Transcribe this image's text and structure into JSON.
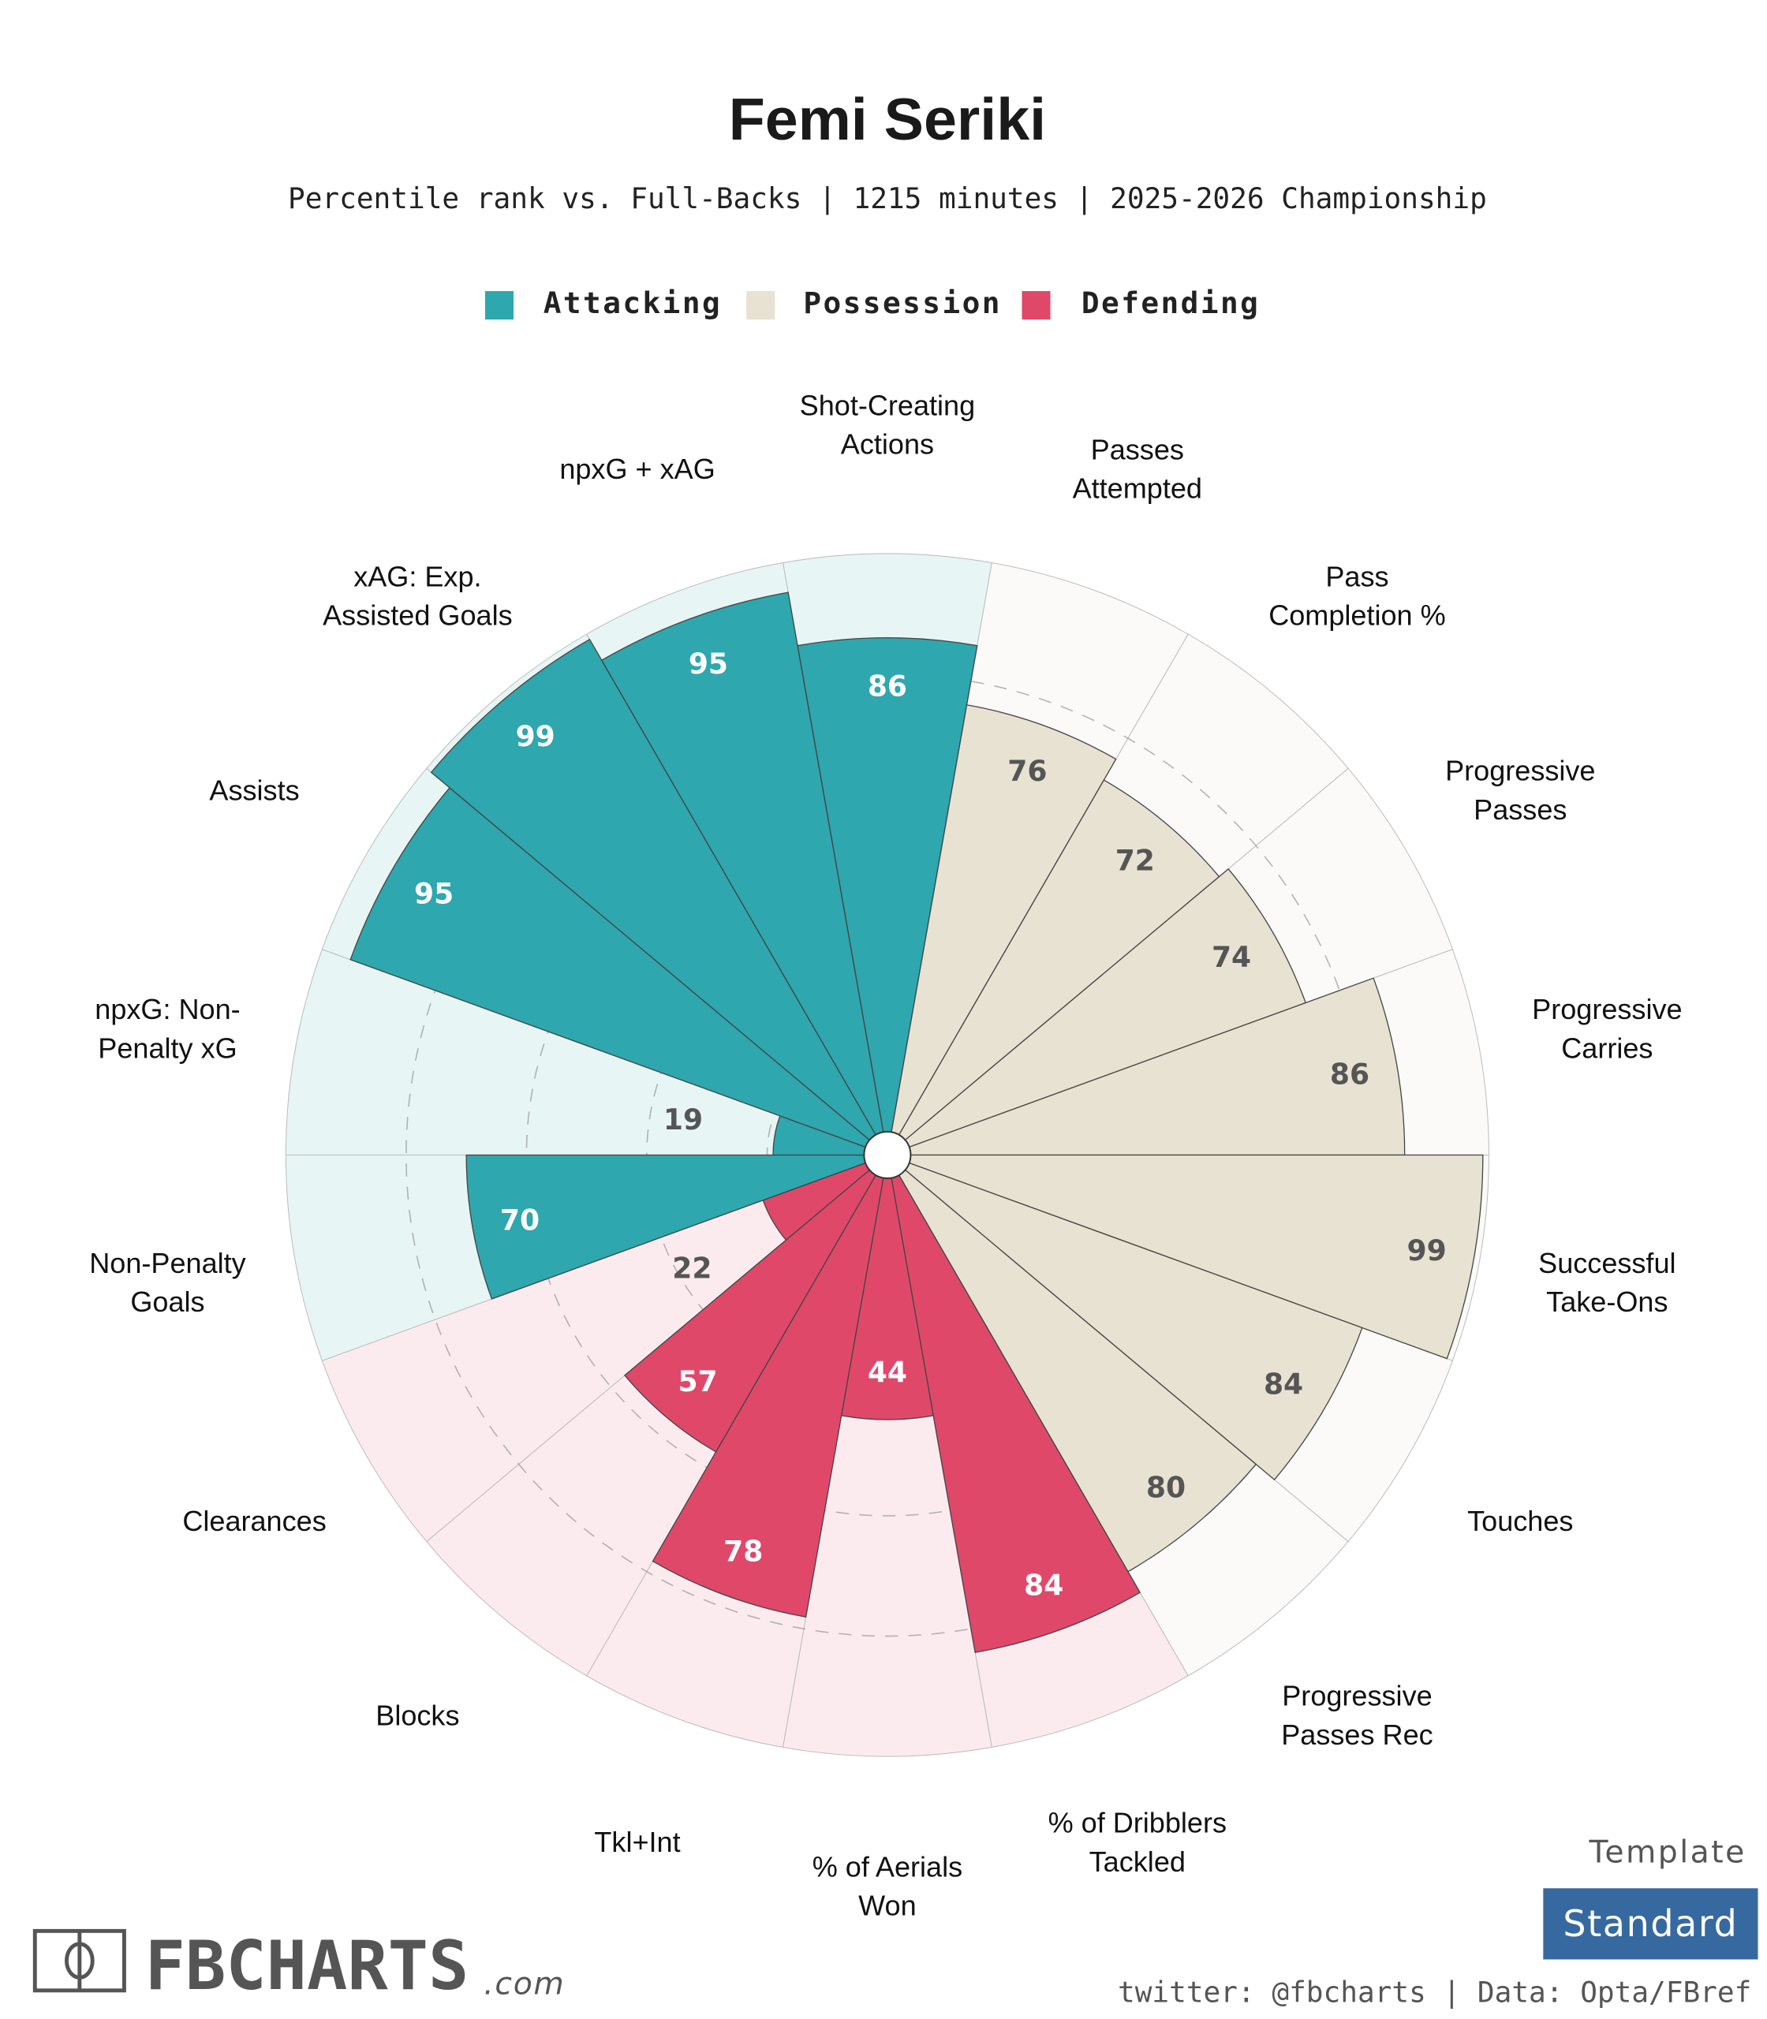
{
  "chart_data": {
    "type": "polar-bar",
    "title": "Femi Seriki",
    "subtitle": "Percentile rank vs. Full-Backs | 1215 minutes | 2025-2026 Championship",
    "rlim": [
      0,
      100
    ],
    "grid_rings": [
      20,
      40,
      60,
      80
    ],
    "legend": [
      {
        "name": "Attacking",
        "color": "#2ea7ae",
        "bg": "#e8f5f5"
      },
      {
        "name": "Possession",
        "color": "#e8e2d2",
        "bg": "#fbfaf8"
      },
      {
        "name": "Defending",
        "color": "#e0486a",
        "bg": "#fbebef"
      }
    ],
    "legend_placement": "top-center",
    "categories": [
      {
        "lines": [
          "Shot-Creating",
          "Actions"
        ],
        "value": 86,
        "group": 0
      },
      {
        "lines": [
          "Passes",
          "Attempted"
        ],
        "value": 76,
        "group": 1
      },
      {
        "lines": [
          "Pass",
          "Completion %"
        ],
        "value": 72,
        "group": 1
      },
      {
        "lines": [
          "Progressive",
          "Passes"
        ],
        "value": 74,
        "group": 1
      },
      {
        "lines": [
          "Progressive",
          "Carries"
        ],
        "value": 86,
        "group": 1
      },
      {
        "lines": [
          "Successful",
          "Take-Ons"
        ],
        "value": 99,
        "group": 1
      },
      {
        "lines": [
          "Touches"
        ],
        "value": 84,
        "group": 1
      },
      {
        "lines": [
          "Progressive",
          "Passes Rec"
        ],
        "value": 80,
        "group": 1
      },
      {
        "lines": [
          "% of Dribblers",
          "Tackled"
        ],
        "value": 84,
        "group": 2
      },
      {
        "lines": [
          "% of Aerials",
          "Won"
        ],
        "value": 44,
        "group": 2
      },
      {
        "lines": [
          "Tkl+Int"
        ],
        "value": 78,
        "group": 2
      },
      {
        "lines": [
          "Blocks"
        ],
        "value": 57,
        "group": 2
      },
      {
        "lines": [
          "Clearances"
        ],
        "value": 22,
        "group": 2
      },
      {
        "lines": [
          "Non-Penalty",
          "Goals"
        ],
        "value": 70,
        "group": 0
      },
      {
        "lines": [
          "npxG: Non-",
          "Penalty xG"
        ],
        "value": 19,
        "group": 0
      },
      {
        "lines": [
          "Assists"
        ],
        "value": 95,
        "group": 0
      },
      {
        "lines": [
          "xAG: Exp.",
          "Assisted Goals"
        ],
        "value": 99,
        "group": 0
      },
      {
        "lines": [
          "npxG + xAG"
        ],
        "value": 95,
        "group": 0
      }
    ]
  },
  "footer": {
    "template_label": "Template",
    "template_value": "Standard",
    "credits": "twitter: @fbcharts | Data: Opta/FBref",
    "logo_text": "FBCHARTS",
    "logo_suffix": ".com"
  },
  "colors": {
    "template_bg": "#3669a0",
    "value_dark": "#555555"
  }
}
